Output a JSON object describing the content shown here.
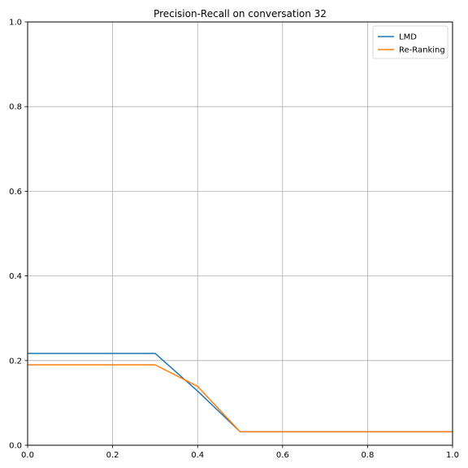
{
  "chart_data": {
    "type": "line",
    "title": "Precision-Recall on conversation 32",
    "xlabel": "",
    "ylabel": "",
    "xlim": [
      0,
      1
    ],
    "ylim": [
      0,
      1
    ],
    "xticks": [
      "0.0",
      "0.2",
      "0.4",
      "0.6",
      "0.8",
      "1.0"
    ],
    "yticks": [
      "0.0",
      "0.2",
      "0.4",
      "0.6",
      "0.8",
      "1.0"
    ],
    "grid": true,
    "legend_position": "top-right",
    "series": [
      {
        "name": "LMD",
        "color": "#1f77b4",
        "x": [
          0.0,
          0.1,
          0.2,
          0.3,
          0.4,
          0.5,
          0.6,
          0.7,
          0.8,
          0.9,
          1.0
        ],
        "y": [
          0.217,
          0.217,
          0.217,
          0.217,
          0.128,
          0.032,
          0.032,
          0.032,
          0.032,
          0.032,
          0.032
        ]
      },
      {
        "name": "Re-Ranking",
        "color": "#ff7f0e",
        "x": [
          0.0,
          0.1,
          0.2,
          0.3,
          0.4,
          0.5,
          0.6,
          0.7,
          0.8,
          0.9,
          1.0
        ],
        "y": [
          0.19,
          0.19,
          0.19,
          0.19,
          0.139,
          0.032,
          0.032,
          0.032,
          0.032,
          0.032,
          0.032
        ]
      }
    ]
  }
}
